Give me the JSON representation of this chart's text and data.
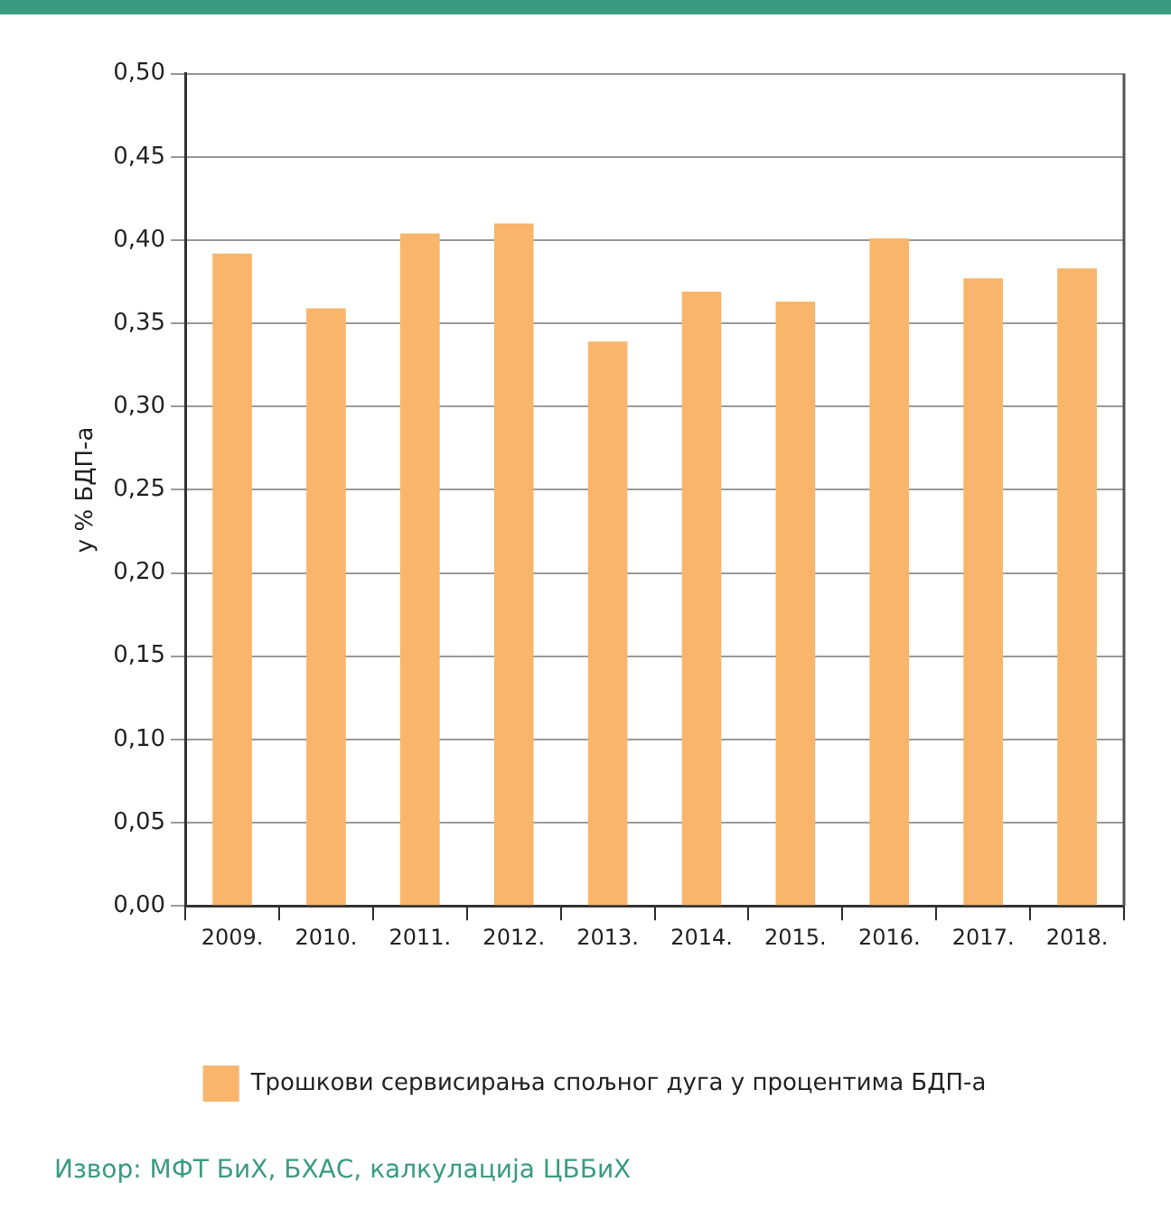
{
  "chart_data": {
    "type": "bar",
    "ylabel": "у % БДП-а",
    "categories": [
      "2009.",
      "2010.",
      "2011.",
      "2012.",
      "2013.",
      "2014.",
      "2015.",
      "2016.",
      "2017.",
      "2018."
    ],
    "series": [
      {
        "name": "Трошкови сервисирања спољног дуга у процентима БДП-а",
        "color": "#f8b56b",
        "values": [
          0.392,
          0.359,
          0.404,
          0.41,
          0.339,
          0.369,
          0.363,
          0.401,
          0.377,
          0.383
        ]
      }
    ],
    "ylim": [
      0,
      0.5
    ],
    "yticks": [
      {
        "value": 0,
        "label": "0,00"
      },
      {
        "value": 0.05,
        "label": "0,05"
      },
      {
        "value": 0.1,
        "label": "0,10"
      },
      {
        "value": 0.15,
        "label": "0,15"
      },
      {
        "value": 0.2,
        "label": "0,20"
      },
      {
        "value": 0.25,
        "label": "0,25"
      },
      {
        "value": 0.3,
        "label": "0,30"
      },
      {
        "value": 0.35,
        "label": "0,35"
      },
      {
        "value": 0.4,
        "label": "0,40"
      },
      {
        "value": 0.45,
        "label": "0,45"
      },
      {
        "value": 0.5,
        "label": "0,50"
      }
    ],
    "grid": "y",
    "legend": "bottom",
    "annotations": [
      "Извор: МФТ БиХ, БХАС, калкулација ЦББиХ"
    ]
  }
}
